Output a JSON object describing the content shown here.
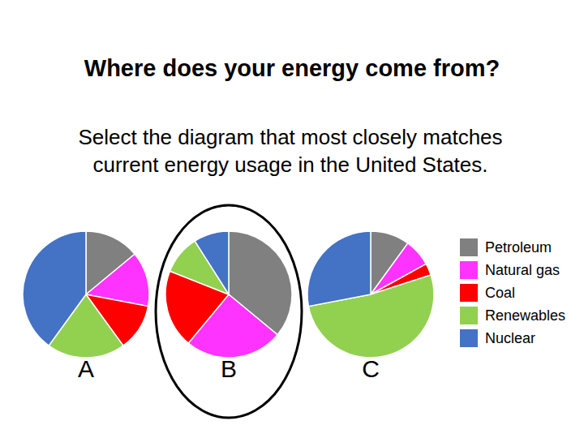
{
  "title": "Where does your energy come from?",
  "subtitle": [
    "Select the diagram that most closely matches",
    "current energy usage in the United States."
  ],
  "chart_data": [
    {
      "type": "pie",
      "title": "A",
      "categories": [
        "Petroleum",
        "Natural gas",
        "Coal",
        "Renewables",
        "Nuclear"
      ],
      "values": [
        14,
        14,
        12,
        20,
        40
      ],
      "colors": [
        "#808080",
        "#ff33ff",
        "#ff0000",
        "#92d050",
        "#4472c4"
      ],
      "legend": "right"
    },
    {
      "type": "pie",
      "title": "B",
      "categories": [
        "Petroleum",
        "Natural gas",
        "Coal",
        "Renewables",
        "Nuclear"
      ],
      "values": [
        36,
        25,
        20,
        10,
        9
      ],
      "colors": [
        "#808080",
        "#ff33ff",
        "#ff0000",
        "#92d050",
        "#4472c4"
      ]
    },
    {
      "type": "pie",
      "title": "C",
      "categories": [
        "Petroleum",
        "Natural gas",
        "Coal",
        "Renewables",
        "Nuclear"
      ],
      "values": [
        10,
        7,
        3,
        52,
        28
      ],
      "colors": [
        "#808080",
        "#ff33ff",
        "#ff0000",
        "#92d050",
        "#4472c4"
      ]
    }
  ]
}
